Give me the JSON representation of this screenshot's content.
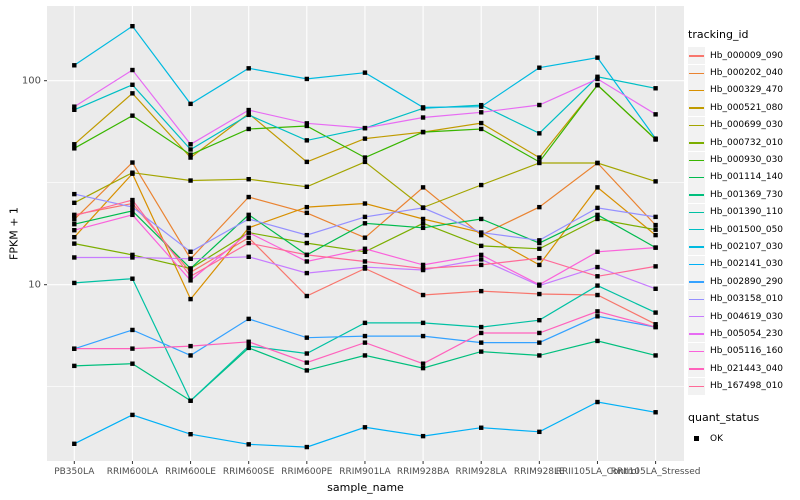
{
  "axes": {
    "y": {
      "label": "FPKM + 1",
      "tick_labels": [
        "100",
        "10"
      ],
      "tick_values": [
        100,
        10
      ],
      "minor_values": [
        31.62,
        3.162
      ]
    },
    "x": {
      "label": "sample_name",
      "categories": [
        "PB350LA",
        "RRIM600LA",
        "RRIM600LE",
        "RRIM600SE",
        "RRIM600PE",
        "RRIM901LA",
        "RRIM928BA",
        "RRIM928LA",
        "RRIM928LE",
        "RRII105LA_Control",
        "RRII105LA_Stressed"
      ]
    }
  },
  "legend": {
    "tracking_title": "tracking_id",
    "quant_title": "quant_status",
    "quant_items": [
      {
        "label": "OK",
        "marker": "black-square"
      }
    ]
  },
  "colors": {
    "panel_bg": "#EBEBEB",
    "grid": "#FFFFFF",
    "axis_text": "#4D4D4D",
    "marker": "#000000"
  },
  "chart_data": {
    "type": "line",
    "title": "",
    "xlabel": "sample_name",
    "ylabel": "FPKM + 1",
    "y_scale": "log10",
    "ylim": [
      1.35,
      220
    ],
    "grid": "white-major-minor-on-gray-panel",
    "legend_position": "right",
    "point_marker": "black-square",
    "categories": [
      "PB350LA",
      "RRIM600LA",
      "RRIM600LE",
      "RRIM600SE",
      "RRIM600PE",
      "RRIM901LA",
      "RRIM928BA",
      "RRIM928LA",
      "RRIM928LE",
      "RRII105LA_Control",
      "RRII105LA_Stressed"
    ],
    "series": [
      {
        "name": "Hb_000009_090",
        "color": "#F8766D",
        "values": [
          22,
          25,
          11.5,
          17,
          8.8,
          12,
          8.9,
          9.3,
          9.0,
          8.9,
          6.4
        ]
      },
      {
        "name": "Hb_000202_040",
        "color": "#EA8331",
        "values": [
          20.9,
          39.7,
          13.4,
          26.9,
          22.5,
          17,
          30,
          17.5,
          24,
          39.5,
          19.6
        ]
      },
      {
        "name": "Hb_000329_470",
        "color": "#D89000",
        "values": [
          17.1,
          35,
          8.5,
          19,
          24,
          25,
          21,
          18,
          12.5,
          30,
          17.5
        ]
      },
      {
        "name": "Hb_000521_080",
        "color": "#C09B00",
        "values": [
          48.8,
          86.7,
          42,
          69,
          40,
          52,
          56,
          62,
          42,
          95,
          51.5
        ]
      },
      {
        "name": "Hb_000699_030",
        "color": "#A3A500",
        "values": [
          25.2,
          35.4,
          32.4,
          32.9,
          30.2,
          40,
          23.9,
          30.8,
          39.5,
          39.5,
          32.1
        ]
      },
      {
        "name": "Hb_000732_010",
        "color": "#7CAE00",
        "values": [
          15.9,
          14,
          12,
          18,
          16,
          14.5,
          20,
          15.5,
          15,
          21,
          18.6
        ]
      },
      {
        "name": "Hb_000930_030",
        "color": "#39B600",
        "values": [
          46.6,
          67.4,
          43.4,
          58,
          60,
          42,
          56,
          58,
          40,
          95.3,
          51.6
        ]
      },
      {
        "name": "Hb_001114_140",
        "color": "#00BB4E",
        "values": [
          19.8,
          23,
          12,
          22,
          14,
          20,
          19,
          21,
          16,
          22,
          15.2
        ]
      },
      {
        "name": "Hb_001369_730",
        "color": "#00BF7D",
        "values": [
          4.0,
          4.1,
          2.7,
          4.9,
          3.8,
          4.5,
          3.9,
          4.7,
          4.5,
          5.3,
          4.5
        ]
      },
      {
        "name": "Hb_001390_110",
        "color": "#00C1A3",
        "values": [
          10.2,
          10.7,
          2.7,
          5.0,
          4.6,
          6.5,
          6.5,
          6.2,
          6.7,
          9.9,
          7.3
        ]
      },
      {
        "name": "Hb_001500_050",
        "color": "#00BFC4",
        "values": [
          72,
          95.5,
          46,
          68,
          51,
          58.5,
          73.2,
          75.9,
          55.2,
          104.5,
          91.8
        ]
      },
      {
        "name": "Hb_002107_030",
        "color": "#00BAE0",
        "values": [
          119,
          185,
          77,
          115,
          102,
          109.5,
          74,
          74.6,
          115.8,
          129.7,
          52
        ]
      },
      {
        "name": "Hb_002141_030",
        "color": "#00B0F6",
        "values": [
          1.66,
          2.3,
          1.85,
          1.65,
          1.6,
          2.0,
          1.81,
          1.99,
          1.9,
          2.66,
          2.37
        ]
      },
      {
        "name": "Hb_002890_290",
        "color": "#35A2FF",
        "values": [
          4.85,
          6.0,
          4.5,
          6.8,
          5.5,
          5.6,
          5.6,
          5.2,
          5.2,
          7.0,
          6.2
        ]
      },
      {
        "name": "Hb_003158_010",
        "color": "#9590FF",
        "values": [
          27.8,
          24,
          14.5,
          21,
          17.5,
          21.5,
          23.8,
          18,
          16.5,
          23.8,
          21.5
        ]
      },
      {
        "name": "Hb_004619_030",
        "color": "#C77CFF",
        "values": [
          13.6,
          13.6,
          13.4,
          13.7,
          11.4,
          12.2,
          11.8,
          13.3,
          9.9,
          12.2,
          9.55
        ]
      },
      {
        "name": "Hb_005054_230",
        "color": "#E76BF3",
        "values": [
          74.6,
          112.8,
          48.8,
          71.8,
          61.8,
          58.6,
          66,
          70,
          76,
          102,
          68.4
        ]
      },
      {
        "name": "Hb_005116_160",
        "color": "#FA62DB",
        "values": [
          18.5,
          22,
          10.5,
          18,
          13,
          15,
          12.5,
          14,
          10,
          14.5,
          15.2
        ]
      },
      {
        "name": "Hb_021443_040",
        "color": "#FF62BC",
        "values": [
          4.86,
          4.86,
          5.0,
          5.25,
          4.15,
          5.2,
          4.1,
          5.8,
          5.8,
          7.4,
          6.2
        ]
      },
      {
        "name": "Hb_167498_010",
        "color": "#FF6A98",
        "values": [
          21.8,
          26,
          11,
          16,
          14,
          13,
          12,
          12.5,
          13.5,
          11,
          12.3
        ]
      }
    ]
  }
}
